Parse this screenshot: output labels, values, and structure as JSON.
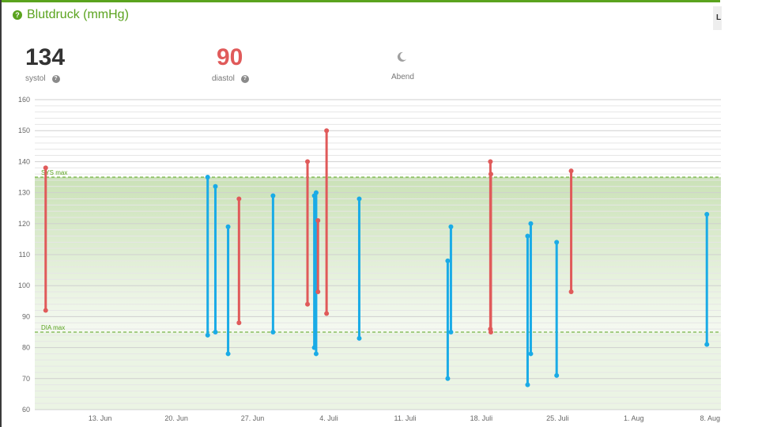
{
  "header": {
    "title": "Blutdruck (mmHg)",
    "help": "?"
  },
  "edge_tab": "L",
  "stats": {
    "systolic": {
      "value": "134",
      "label": "systol",
      "color": "#333333"
    },
    "diastolic": {
      "value": "90",
      "label": "diastol",
      "color": "#e05a5a"
    },
    "time_of_day": {
      "label": "Abend",
      "icon": "moon-icon"
    }
  },
  "chart_data": {
    "type": "range-bar",
    "ylim": [
      60,
      160
    ],
    "yticks": [
      60,
      70,
      80,
      90,
      100,
      110,
      120,
      130,
      140,
      150,
      160
    ],
    "xlim": [
      "2024-06-07",
      "2024-08-09"
    ],
    "xticks": [
      {
        "date": "2024-06-13",
        "label": "13. Jun"
      },
      {
        "date": "2024-06-20",
        "label": "20. Jun"
      },
      {
        "date": "2024-06-27",
        "label": "27. Jun"
      },
      {
        "date": "2024-07-04",
        "label": "4. Juli"
      },
      {
        "date": "2024-07-11",
        "label": "11. Juli"
      },
      {
        "date": "2024-07-18",
        "label": "18. Juli"
      },
      {
        "date": "2024-07-25",
        "label": "25. Juli"
      },
      {
        "date": "2024-08-01",
        "label": "1. Aug"
      },
      {
        "date": "2024-08-08",
        "label": "8. Aug"
      }
    ],
    "limits": [
      {
        "label": "SYS max",
        "value": 135
      },
      {
        "label": "DIA max",
        "value": 85
      }
    ],
    "colors": {
      "above": "#e05a5a",
      "within": "#1aabe6",
      "band": "#5aa31e"
    },
    "readings": [
      {
        "date": "2024-06-08 00:00",
        "sys": 138,
        "dia": 92,
        "status": "above"
      },
      {
        "date": "2024-06-22 21:00",
        "sys": 135,
        "dia": 84,
        "status": "within"
      },
      {
        "date": "2024-06-23 14:00",
        "sys": 132,
        "dia": 85,
        "status": "within"
      },
      {
        "date": "2024-06-24 18:00",
        "sys": 119,
        "dia": 78,
        "status": "within"
      },
      {
        "date": "2024-06-25 18:00",
        "sys": 128,
        "dia": 88,
        "status": "above"
      },
      {
        "date": "2024-06-28 21:00",
        "sys": 129,
        "dia": 85,
        "status": "within"
      },
      {
        "date": "2024-07-02 01:00",
        "sys": 140,
        "dia": 94,
        "status": "above"
      },
      {
        "date": "2024-07-02 16:00",
        "sys": 129,
        "dia": 80,
        "status": "within"
      },
      {
        "date": "2024-07-02 20:00",
        "sys": 130,
        "dia": 78,
        "status": "within"
      },
      {
        "date": "2024-07-03 00:00",
        "sys": 121,
        "dia": 98,
        "status": "above"
      },
      {
        "date": "2024-07-03 19:00",
        "sys": 150,
        "dia": 91,
        "status": "above"
      },
      {
        "date": "2024-07-06 19:00",
        "sys": 128,
        "dia": 83,
        "status": "within"
      },
      {
        "date": "2024-07-14 22:00",
        "sys": 108,
        "dia": 70,
        "status": "within"
      },
      {
        "date": "2024-07-15 05:00",
        "sys": 119,
        "dia": 85,
        "status": "within"
      },
      {
        "date": "2024-07-18 20:00",
        "sys": 140,
        "dia": 86,
        "status": "above"
      },
      {
        "date": "2024-07-18 21:00",
        "sys": 136,
        "dia": 85,
        "status": "above"
      },
      {
        "date": "2024-07-22 06:00",
        "sys": 116,
        "dia": 68,
        "status": "within"
      },
      {
        "date": "2024-07-22 13:00",
        "sys": 120,
        "dia": 78,
        "status": "within"
      },
      {
        "date": "2024-07-24 22:00",
        "sys": 114,
        "dia": 71,
        "status": "within"
      },
      {
        "date": "2024-07-26 06:00",
        "sys": 137,
        "dia": 98,
        "status": "above"
      },
      {
        "date": "2024-08-07 17:00",
        "sys": 123,
        "dia": 81,
        "status": "within"
      }
    ]
  }
}
